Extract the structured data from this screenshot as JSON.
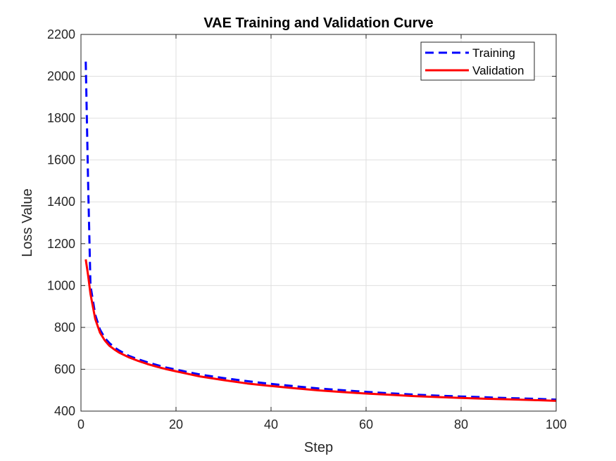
{
  "chart_data": {
    "type": "line",
    "title": "VAE Training and Validation Curve",
    "xlabel": "Step",
    "ylabel": "Loss Value",
    "xlim": [
      0,
      100
    ],
    "ylim": [
      400,
      2200
    ],
    "xticks": [
      0,
      20,
      40,
      60,
      80,
      100
    ],
    "yticks": [
      400,
      600,
      800,
      1000,
      1200,
      1400,
      1600,
      1800,
      2000,
      2200
    ],
    "grid": true,
    "legend_position": "top-right",
    "series": [
      {
        "name": "Training",
        "color": "#0000ff",
        "style": "dashed",
        "points": [
          [
            1,
            2070
          ],
          [
            1.5,
            1500
          ],
          [
            2,
            1000
          ],
          [
            3,
            860
          ],
          [
            4,
            790
          ],
          [
            5,
            750
          ],
          [
            6,
            725
          ],
          [
            7,
            705
          ],
          [
            8,
            690
          ],
          [
            10,
            665
          ],
          [
            12,
            648
          ],
          [
            14,
            633
          ],
          [
            16,
            620
          ],
          [
            18,
            608
          ],
          [
            20,
            598
          ],
          [
            25,
            575
          ],
          [
            30,
            558
          ],
          [
            35,
            543
          ],
          [
            40,
            530
          ],
          [
            45,
            519
          ],
          [
            50,
            508
          ],
          [
            55,
            500
          ],
          [
            60,
            492
          ],
          [
            65,
            485
          ],
          [
            70,
            479
          ],
          [
            75,
            474
          ],
          [
            80,
            470
          ],
          [
            85,
            466
          ],
          [
            90,
            462
          ],
          [
            95,
            459
          ],
          [
            100,
            455
          ]
        ]
      },
      {
        "name": "Validation",
        "color": "#ff0000",
        "style": "solid",
        "points": [
          [
            1,
            1125
          ],
          [
            1.5,
            1050
          ],
          [
            2,
            960
          ],
          [
            3,
            840
          ],
          [
            4,
            775
          ],
          [
            5,
            738
          ],
          [
            6,
            712
          ],
          [
            7,
            695
          ],
          [
            8,
            680
          ],
          [
            10,
            658
          ],
          [
            12,
            640
          ],
          [
            14,
            625
          ],
          [
            16,
            612
          ],
          [
            18,
            600
          ],
          [
            20,
            590
          ],
          [
            25,
            566
          ],
          [
            30,
            548
          ],
          [
            35,
            532
          ],
          [
            40,
            520
          ],
          [
            45,
            509
          ],
          [
            50,
            499
          ],
          [
            55,
            491
          ],
          [
            60,
            484
          ],
          [
            65,
            478
          ],
          [
            70,
            472
          ],
          [
            75,
            467
          ],
          [
            80,
            463
          ],
          [
            85,
            459
          ],
          [
            90,
            456
          ],
          [
            95,
            453
          ],
          [
            100,
            449
          ]
        ]
      }
    ]
  }
}
